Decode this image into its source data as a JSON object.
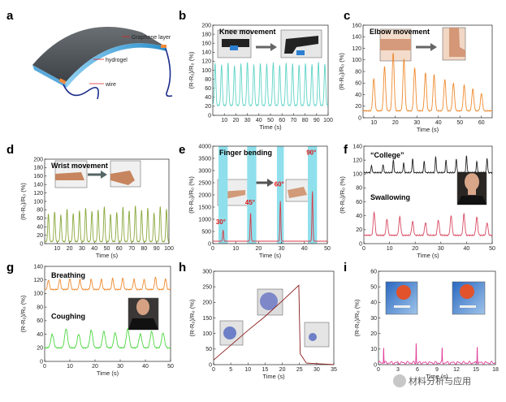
{
  "panel_letters": [
    "a",
    "b",
    "c",
    "d",
    "e",
    "f",
    "g",
    "h",
    "i"
  ],
  "schematic": {
    "labels": [
      "Graphene layer",
      "hydrogel",
      "wire"
    ]
  },
  "watermark": "材料分析与应用",
  "chart_data": [
    {
      "id": "b",
      "type": "line",
      "title": "Knee movement",
      "xlabel": "Time (s)",
      "ylabel": "(R-R₀)/R₀ (%)",
      "xlim": [
        0,
        100
      ],
      "ylim": [
        0,
        200
      ],
      "xticks": [
        10,
        20,
        30,
        40,
        50,
        60,
        70,
        80,
        90,
        100
      ],
      "yticks": [
        0,
        20,
        40,
        60,
        80,
        100,
        120,
        140,
        160,
        180,
        200
      ],
      "color": "#5fd4c7",
      "signal": {
        "kind": "peaks",
        "base": 22,
        "peak_values": [
          115,
          112,
          116,
          110,
          114,
          118,
          112,
          115,
          113,
          117,
          111,
          116,
          114,
          112,
          115,
          113,
          117,
          114
        ],
        "peak_times": [
          2,
          7.6,
          13.2,
          18.8,
          24.4,
          30,
          35.6,
          41.2,
          46.8,
          52.4,
          58,
          63.6,
          69.2,
          74.8,
          80.4,
          86,
          91.6,
          97.2
        ],
        "width": 1.8
      }
    },
    {
      "id": "c",
      "type": "line",
      "title": "Elbow movement",
      "xlabel": "Time (s)",
      "ylabel": "(R-R₀)/R₀ (%)",
      "xlim": [
        5,
        65
      ],
      "ylim": [
        0,
        160
      ],
      "xticks": [
        10,
        20,
        30,
        40,
        50,
        60
      ],
      "yticks": [
        0,
        20,
        40,
        60,
        80,
        100,
        120,
        140,
        160
      ],
      "color": "#ef8a2f",
      "signal": {
        "kind": "peaks",
        "base": 12,
        "peak_values": [
          68,
          88,
          112,
          102,
          86,
          78,
          74,
          66,
          60,
          56,
          50,
          42
        ],
        "peak_times": [
          10,
          15,
          19,
          24,
          29,
          34,
          38,
          43,
          47,
          52,
          56,
          60
        ],
        "width": 1.3
      }
    },
    {
      "id": "d",
      "type": "line",
      "title": "Wrist movement",
      "xlabel": "Time (s)",
      "ylabel": "(R-R₀)/R₀ (%)",
      "xlim": [
        0,
        100
      ],
      "ylim": [
        0,
        200
      ],
      "xticks": [
        10,
        20,
        30,
        40,
        50,
        60,
        70,
        80,
        90,
        100
      ],
      "yticks": [
        0,
        20,
        40,
        60,
        80,
        100,
        120,
        140,
        160,
        180,
        200
      ],
      "color": "#8aa83c",
      "signal": {
        "kind": "peaks",
        "base": 5,
        "peak_values": [
          70,
          75,
          68,
          82,
          72,
          78,
          84,
          76,
          80,
          88,
          70,
          74,
          86,
          78,
          90,
          80,
          84,
          72,
          88,
          82
        ],
        "peak_times": [
          3,
          8,
          13,
          18,
          23,
          28,
          33,
          38,
          43,
          48,
          53,
          58,
          63,
          68,
          73,
          78,
          83,
          88,
          93,
          98
        ],
        "width": 1.5
      }
    },
    {
      "id": "e",
      "type": "line",
      "title": "Finger bending",
      "xlabel": "Time (s)",
      "ylabel": "(R-R₀)/R₀ (%)",
      "xlim": [
        0,
        50
      ],
      "ylim": [
        0,
        4000
      ],
      "xticks": [
        0,
        10,
        20,
        30,
        40,
        50
      ],
      "yticks": [
        0,
        500,
        1000,
        1500,
        2000,
        2500,
        3000,
        3500,
        4000
      ],
      "color": "#d93a47",
      "band_color": "#8fe0ec",
      "bands": [
        [
          2.5,
          6.5
        ],
        [
          15,
          19
        ],
        [
          28,
          31
        ],
        [
          41.5,
          45.5
        ]
      ],
      "annotations": [
        {
          "text": "30°",
          "x": 3.5,
          "y": 800
        },
        {
          "text": "45°",
          "x": 16.3,
          "y": 1600
        },
        {
          "text": "60°",
          "x": 29,
          "y": 2350
        },
        {
          "text": "90°",
          "x": 43,
          "y": 3650
        }
      ],
      "signal": {
        "kind": "peaks",
        "base": 100,
        "peak_values": [
          560,
          1250,
          1750,
          2150
        ],
        "peak_times": [
          4.5,
          16.5,
          29.5,
          43.5
        ],
        "width": 0.6
      }
    },
    {
      "id": "f",
      "type": "line",
      "title": "",
      "xlabel": "Time (s)",
      "ylabel": "(R-R₀)/R₀ (%)",
      "xlim": [
        0,
        50
      ],
      "ylim": [
        0,
        140
      ],
      "xticks": [
        0,
        10,
        20,
        30,
        40,
        50
      ],
      "yticks": [
        0,
        20,
        40,
        60,
        80,
        100,
        120,
        140
      ],
      "series": [
        {
          "name": "“College”",
          "color": "#222222",
          "signal": {
            "kind": "peaks",
            "base": 102,
            "peak_values": [
              112,
              114,
              120,
              116,
              122,
              118,
              125,
              120,
              122,
              126,
              118,
              123
            ],
            "peak_times": [
              3,
              7.5,
              11.5,
              15.5,
              19,
              23.5,
              28,
              32,
              36,
              40,
              44,
              48
            ],
            "width": 0.6
          }
        },
        {
          "name": "Swallowing",
          "color": "#d84a62",
          "signal": {
            "kind": "peaks",
            "base": 12,
            "peak_values": [
              45,
              35,
              38,
              32,
              30,
              34,
              40,
              42,
              38,
              30
            ],
            "peak_times": [
              4,
              9,
              14,
              19,
              24,
              29,
              34,
              39,
              44,
              48
            ],
            "width": 1.0
          }
        }
      ]
    },
    {
      "id": "g",
      "type": "line",
      "title": "",
      "xlabel": "Time (s)",
      "ylabel": "(R-R₀)/R₀ (%)",
      "xlim": [
        0,
        50
      ],
      "ylim": [
        0,
        140
      ],
      "xticks": [
        0,
        10,
        20,
        30,
        40,
        50
      ],
      "yticks": [
        0,
        20,
        40,
        60,
        80,
        100,
        120,
        140
      ],
      "series": [
        {
          "name": "Breathing",
          "color": "#ef8a2f",
          "signal": {
            "kind": "peaks",
            "base": 106,
            "peak_values": [
              120,
              121,
              122,
              120,
              121,
              121,
              122,
              123,
              121,
              121,
              124,
              122
            ],
            "peak_times": [
              1.5,
              6,
              10,
              14,
              18.5,
              22.5,
              27,
              31,
              35.5,
              39.5,
              44,
              48
            ],
            "width": 1.0
          }
        },
        {
          "name": "Coughing",
          "color": "#4cd640",
          "signal": {
            "kind": "peaks",
            "base": 20,
            "peak_values": [
              40,
              48,
              40,
              46,
              44,
              42,
              48,
              40,
              44,
              42
            ],
            "peak_times": [
              3,
              8.5,
              13.5,
              18.5,
              23.5,
              28,
              33,
              38,
              42.5,
              47
            ],
            "width": 1.6
          }
        }
      ]
    },
    {
      "id": "h",
      "type": "line",
      "title": "",
      "xlabel": "Time (s)",
      "ylabel": "(R-R₀)/R₀ (%)",
      "xlim": [
        0,
        35
      ],
      "ylim": [
        0,
        300
      ],
      "xticks": [
        0,
        5,
        10,
        15,
        20,
        25,
        30,
        35
      ],
      "yticks": [
        0,
        50,
        100,
        150,
        200,
        250,
        300
      ],
      "color": "#8b1a1a",
      "signal": {
        "kind": "points",
        "x": [
          0,
          5,
          10,
          15,
          20,
          24.8,
          25.2,
          27,
          35
        ],
        "y": [
          15,
          62,
          110,
          155,
          205,
          255,
          35,
          5,
          0
        ]
      }
    },
    {
      "id": "i",
      "type": "line",
      "title": "",
      "xlabel": "Time (s)",
      "ylabel": "(R-R₀)/R₀ (%)",
      "xlim": [
        0,
        18
      ],
      "ylim": [
        0,
        60
      ],
      "xticks": [
        0,
        3,
        6,
        9,
        12,
        15,
        18
      ],
      "yticks": [
        0,
        10,
        20,
        30,
        40,
        50,
        60
      ],
      "color": "#e0409a",
      "signal": {
        "kind": "peaks",
        "base": 1.2,
        "peak_values": [
          12,
          15,
          11,
          13
        ],
        "peak_times": [
          0.8,
          5.8,
          9.8,
          15.2
        ],
        "width": 0.08
      }
    }
  ]
}
